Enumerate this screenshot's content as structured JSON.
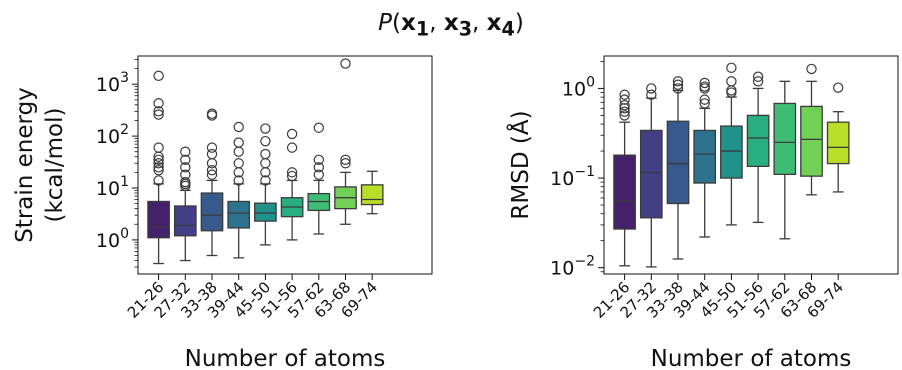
{
  "title": {
    "func": "P",
    "open": "(",
    "vars": [
      "x",
      "x",
      "x"
    ],
    "subs": [
      "1",
      "3",
      "4"
    ],
    "sep": ", ",
    "close": ")"
  },
  "chart_data": [
    {
      "type": "box",
      "name": "strain",
      "xlabel": "Number of atoms",
      "ylabel": [
        "Strain energy",
        "(kcal/mol)"
      ],
      "yscale": "log",
      "ylim": [
        0.22,
        3500
      ],
      "yticks": [
        {
          "v": 1,
          "b": "10",
          "e": "0"
        },
        {
          "v": 10,
          "b": "10",
          "e": "1"
        },
        {
          "v": 100,
          "b": "10",
          "e": "2"
        },
        {
          "v": 1000,
          "b": "10",
          "e": "3"
        }
      ],
      "categories": [
        "21-26",
        "27-32",
        "33-38",
        "39-44",
        "45-50",
        "51-56",
        "57-62",
        "63-68",
        "69-74"
      ],
      "colors": [
        "#46216b",
        "#433e85",
        "#38598c",
        "#2c728e",
        "#21918c",
        "#28ae80",
        "#3fbc73",
        "#73d056",
        "#bade28"
      ],
      "boxes": [
        {
          "wlo": 0.35,
          "q1": 1.1,
          "med": 1.8,
          "q3": 5.5,
          "whi": 12,
          "fliers": [
            1450,
            430,
            300,
            260,
            60,
            40,
            35,
            30,
            25,
            22,
            14
          ]
        },
        {
          "wlo": 0.4,
          "q1": 1.2,
          "med": 1.9,
          "q3": 4.5,
          "whi": 9,
          "fliers": [
            50,
            35,
            25,
            18,
            13,
            12,
            11
          ]
        },
        {
          "wlo": 0.5,
          "q1": 1.5,
          "med": 3.0,
          "q3": 8.0,
          "whi": 14,
          "fliers": [
            270,
            250,
            60,
            45,
            30,
            22,
            18
          ]
        },
        {
          "wlo": 0.45,
          "q1": 1.7,
          "med": 3.3,
          "q3": 5.5,
          "whi": 12,
          "fliers": [
            150,
            75,
            50,
            30,
            20,
            14
          ]
        },
        {
          "wlo": 0.8,
          "q1": 2.3,
          "med": 3.3,
          "q3": 5.1,
          "whi": 12,
          "fliers": [
            140,
            80,
            45,
            30,
            20,
            14
          ]
        },
        {
          "wlo": 1.0,
          "q1": 2.8,
          "med": 4.3,
          "q3": 6.5,
          "whi": 14,
          "fliers": [
            110,
            60,
            20,
            17
          ]
        },
        {
          "wlo": 1.3,
          "q1": 3.7,
          "med": 5.5,
          "q3": 7.8,
          "whi": 14,
          "fliers": [
            145,
            35,
            25,
            18
          ]
        },
        {
          "wlo": 2.0,
          "q1": 4.0,
          "med": 6.5,
          "q3": 10.5,
          "whi": 20,
          "fliers": [
            2500,
            35,
            30
          ]
        },
        {
          "wlo": 3.2,
          "q1": 4.8,
          "med": 6.0,
          "q3": 11.5,
          "whi": 21,
          "fliers": []
        }
      ]
    },
    {
      "type": "box",
      "name": "rmsd",
      "xlabel": "Number of atoms",
      "ylabel": [
        "RMSD (Å)"
      ],
      "yscale": "log",
      "ylim": [
        0.0085,
        2.3
      ],
      "yticks": [
        {
          "v": 0.01,
          "b": "10",
          "e": "−2"
        },
        {
          "v": 0.1,
          "b": "10",
          "e": "−1"
        },
        {
          "v": 1,
          "b": "10",
          "e": "0"
        }
      ],
      "categories": [
        "21-26",
        "27-32",
        "33-38",
        "39-44",
        "45-50",
        "51-56",
        "57-62",
        "63-68",
        "69-74"
      ],
      "colors": [
        "#46216b",
        "#433e85",
        "#38598c",
        "#2c728e",
        "#21918c",
        "#28ae80",
        "#3fbc73",
        "#73d056",
        "#bade28"
      ],
      "boxes": [
        {
          "wlo": 0.0105,
          "q1": 0.027,
          "med": 0.055,
          "q3": 0.18,
          "whi": 0.42,
          "fliers": [
            0.85,
            0.75,
            0.65,
            0.6,
            0.55,
            0.5
          ]
        },
        {
          "wlo": 0.0102,
          "q1": 0.036,
          "med": 0.115,
          "q3": 0.34,
          "whi": 0.78,
          "fliers": [
            1.0,
            0.85
          ]
        },
        {
          "wlo": 0.0125,
          "q1": 0.052,
          "med": 0.145,
          "q3": 0.43,
          "whi": 0.95,
          "fliers": [
            1.2,
            1.1,
            1.0
          ]
        },
        {
          "wlo": 0.022,
          "q1": 0.088,
          "med": 0.185,
          "q3": 0.34,
          "whi": 0.6,
          "fliers": [
            1.15,
            1.05,
            1.0,
            0.75,
            0.68
          ]
        },
        {
          "wlo": 0.03,
          "q1": 0.1,
          "med": 0.2,
          "q3": 0.38,
          "whi": 0.8,
          "fliers": [
            1.7,
            1.2,
            0.95,
            0.9
          ]
        },
        {
          "wlo": 0.032,
          "q1": 0.135,
          "med": 0.28,
          "q3": 0.5,
          "whi": 1.0,
          "fliers": [
            1.35,
            1.2
          ]
        },
        {
          "wlo": 0.021,
          "q1": 0.11,
          "med": 0.25,
          "q3": 0.68,
          "whi": 1.2,
          "fliers": []
        },
        {
          "wlo": 0.065,
          "q1": 0.105,
          "med": 0.27,
          "q3": 0.63,
          "whi": 1.2,
          "fliers": [
            1.65
          ]
        },
        {
          "wlo": 0.07,
          "q1": 0.145,
          "med": 0.22,
          "q3": 0.42,
          "whi": 0.55,
          "fliers": [
            1.02
          ]
        }
      ]
    }
  ]
}
